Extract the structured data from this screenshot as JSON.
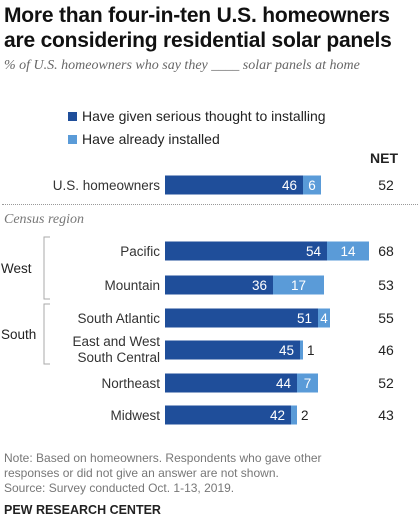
{
  "chart_data": {
    "type": "bar",
    "title": "More than four-in-ten U.S. homeowners are considering residential solar panels",
    "subtitle": "% of U.S. homeowners who say they ____ solar panels at home",
    "series": [
      {
        "name": "Have given serious thought to installing",
        "color": "#1f4e9a"
      },
      {
        "name": "Have already installed",
        "color": "#5a9bd8"
      }
    ],
    "net_label": "NET",
    "section_label": "Census region",
    "groups": [
      {
        "name": "West",
        "rows": [
          1,
          2
        ]
      },
      {
        "name": "South",
        "rows": [
          3,
          4
        ]
      }
    ],
    "categories": [
      {
        "label": [
          "U.S. homeowners"
        ],
        "values": [
          46,
          6
        ],
        "net": 52
      },
      {
        "label": [
          "Pacific"
        ],
        "values": [
          54,
          14
        ],
        "net": 68
      },
      {
        "label": [
          "Mountain"
        ],
        "values": [
          36,
          17
        ],
        "net": 53
      },
      {
        "label": [
          "South Atlantic"
        ],
        "values": [
          51,
          4
        ],
        "net": 55
      },
      {
        "label": [
          "East and West",
          "South Central"
        ],
        "values": [
          45,
          1
        ],
        "net": 46
      },
      {
        "label": [
          "Northeast"
        ],
        "values": [
          44,
          7
        ],
        "net": 52
      },
      {
        "label": [
          "Midwest"
        ],
        "values": [
          42,
          2
        ],
        "net": 43
      }
    ],
    "xlim": [
      0,
      70
    ]
  },
  "note": [
    "Note: Based on homeowners. Respondents who gave other",
    "responses or did not give an answer are not shown.",
    "Source: Survey conducted Oct. 1-13, 2019."
  ],
  "brand": "PEW RESEARCH CENTER"
}
